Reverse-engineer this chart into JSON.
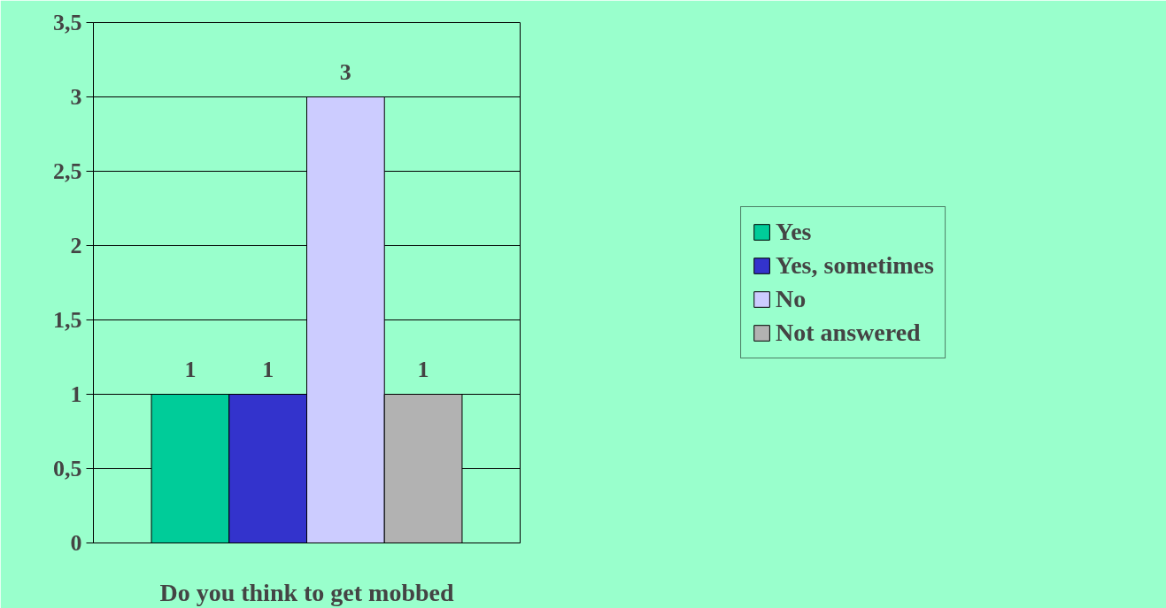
{
  "chart_data": {
    "type": "bar",
    "xlabel": "Do you think to get mobbed",
    "categories": [
      null
    ],
    "series": [
      {
        "name": "Yes",
        "color": "#00cc99",
        "values": [
          1
        ]
      },
      {
        "name": "Yes, sometimes",
        "color": "#3333cc",
        "values": [
          1
        ]
      },
      {
        "name": "No",
        "color": "#ccccff",
        "values": [
          3
        ]
      },
      {
        "name": "Not answered",
        "color": "#b2b2b2",
        "values": [
          1
        ]
      }
    ],
    "ylim": [
      0,
      3.5
    ],
    "yticks": [
      0,
      {
        "value": 0.5,
        "label": "0,5"
      },
      1,
      {
        "value": 1.5,
        "label": "1,5"
      },
      2,
      {
        "value": 2.5,
        "label": "2,5"
      },
      3,
      {
        "value": 3.5,
        "label": "3,5"
      }
    ],
    "grid": "y",
    "data_labels": true,
    "legend": "right"
  }
}
